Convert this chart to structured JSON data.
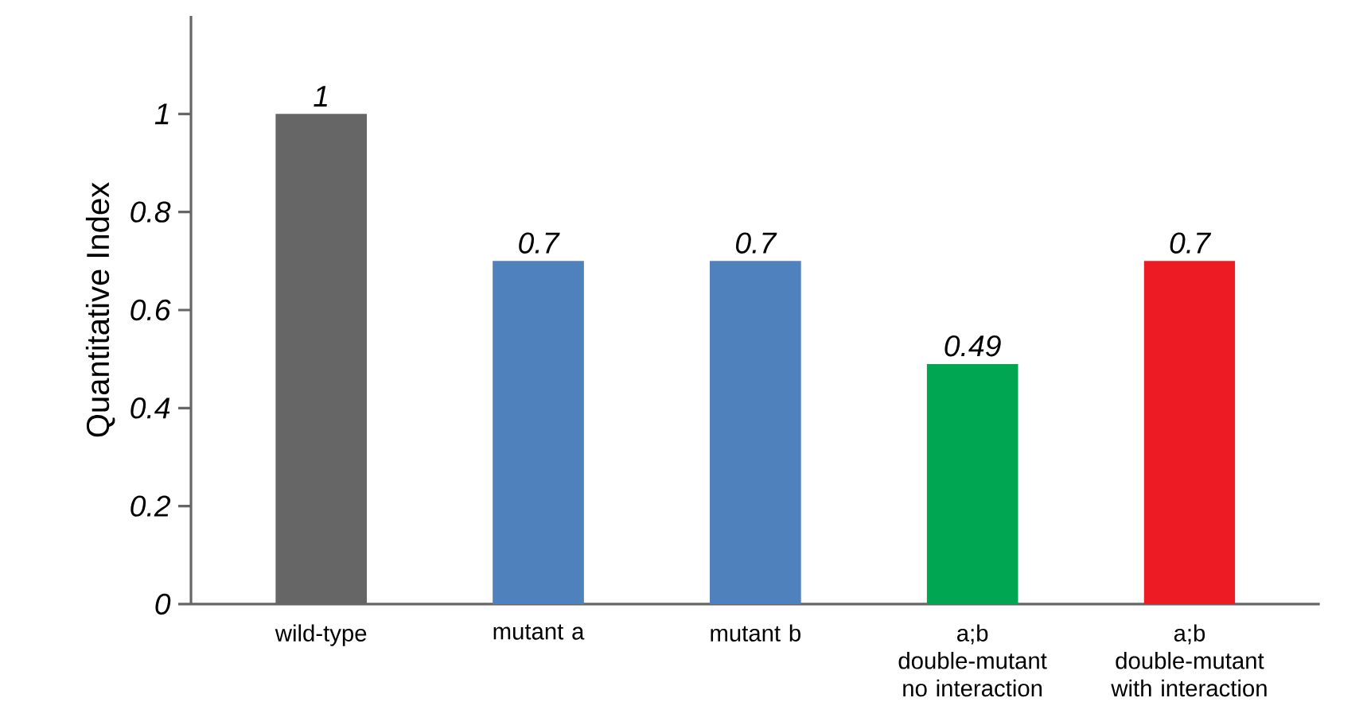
{
  "chart_data": {
    "type": "bar",
    "ylabel": "Quantitative Index",
    "categories": [
      "wild-type",
      "mutant a",
      "mutant b",
      "a;b double-mutant no interaction",
      "a;b double-mutant with interaction"
    ],
    "values": [
      1,
      0.7,
      0.7,
      0.49,
      0.7
    ],
    "colors": [
      "#666666",
      "#4f81bd",
      "#4f81bd",
      "#00a651",
      "#ed1c24"
    ],
    "ylim": [
      0,
      1.2
    ],
    "yticks": [
      0,
      0.2,
      0.4,
      0.6,
      0.8,
      1
    ],
    "data_labels": true,
    "grid": false
  }
}
